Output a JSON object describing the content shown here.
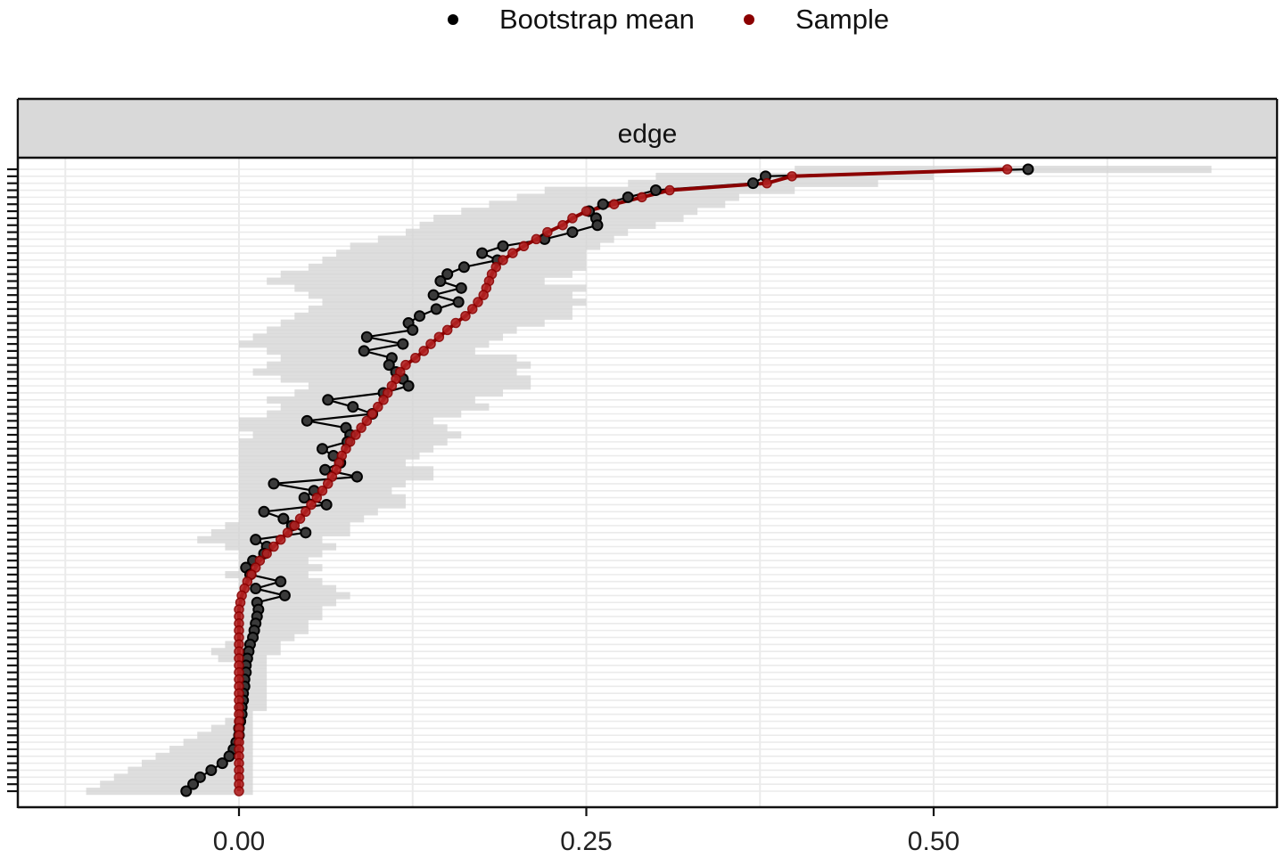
{
  "chart_data": {
    "type": "line",
    "title": "",
    "facet_label": "edge",
    "xlabel": "",
    "ylabel": "",
    "x_ticks": [
      0.0,
      0.25,
      0.5
    ],
    "x_tick_labels": [
      "0.00",
      "0.25",
      "0.50"
    ],
    "xlim": [
      -0.16,
      0.74
    ],
    "y_ticks_count": 90,
    "y_tick_labels": "hidden (edge names not shown)",
    "grid": true,
    "legend": {
      "position": "top",
      "entries": [
        {
          "label": "Bootstrap mean",
          "color": "#000000"
        },
        {
          "label": "Sample",
          "color": "#8b0000"
        }
      ]
    },
    "ci_band_color": "#d3d3d3",
    "series": [
      {
        "name": "Sample",
        "color": "#8b0000",
        "values": [
          0.553,
          0.398,
          0.38,
          0.31,
          0.29,
          0.27,
          0.25,
          0.24,
          0.233,
          0.222,
          0.214,
          0.205,
          0.197,
          0.19,
          0.185,
          0.182,
          0.18,
          0.178,
          0.176,
          0.172,
          0.168,
          0.163,
          0.156,
          0.15,
          0.144,
          0.138,
          0.133,
          0.127,
          0.12,
          0.116,
          0.113,
          0.11,
          0.107,
          0.104,
          0.1,
          0.096,
          0.092,
          0.088,
          0.084,
          0.08,
          0.077,
          0.074,
          0.072,
          0.07,
          0.067,
          0.064,
          0.06,
          0.056,
          0.052,
          0.048,
          0.044,
          0.04,
          0.035,
          0.03,
          0.025,
          0.02,
          0.015,
          0.012,
          0.009,
          0.006,
          0.004,
          0.002,
          0.001,
          0,
          0,
          0,
          0,
          0,
          0,
          0,
          0,
          0,
          0,
          0,
          0,
          0,
          0,
          0,
          0,
          0,
          0,
          0,
          0,
          0,
          0,
          0,
          0,
          0,
          0,
          0
        ]
      },
      {
        "name": "Bootstrap mean",
        "color": "#000000",
        "values": [
          0.568,
          0.379,
          0.37,
          0.3,
          0.28,
          0.262,
          0.252,
          0.257,
          0.258,
          0.24,
          0.22,
          0.19,
          0.175,
          0.186,
          0.162,
          0.15,
          0.145,
          0.16,
          0.14,
          0.158,
          0.142,
          0.13,
          0.122,
          0.125,
          0.092,
          0.118,
          0.09,
          0.11,
          0.108,
          0.113,
          0.118,
          0.122,
          0.104,
          0.064,
          0.082,
          0.096,
          0.049,
          0.077,
          0.08,
          0.078,
          0.06,
          0.068,
          0.073,
          0.062,
          0.085,
          0.025,
          0.054,
          0.047,
          0.063,
          0.018,
          0.032,
          0.038,
          0.048,
          0.012,
          0.02,
          0.018,
          0.01,
          0.005,
          0.008,
          0.03,
          0.012,
          0.033,
          0.013,
          0.014,
          0.013,
          0.012,
          0.011,
          0.01,
          0.008,
          0.007,
          0.006,
          0.005,
          0.005,
          0.004,
          0.004,
          0.003,
          0.003,
          0.002,
          0.002,
          0.001,
          0,
          0,
          -0.002,
          -0.004,
          -0.007,
          -0.012,
          -0.02,
          -0.028,
          -0.033,
          -0.038
        ]
      }
    ],
    "ci_lower": [
      0.4,
      0.3,
      0.28,
      0.22,
      0.2,
      0.18,
      0.16,
      0.14,
      0.13,
      0.12,
      0.1,
      0.08,
      0.07,
      0.06,
      0.05,
      0.03,
      0.02,
      0.04,
      0.05,
      0.06,
      0.05,
      0.04,
      0.03,
      0.02,
      0.01,
      0.0,
      0.02,
      0.03,
      0.02,
      0.01,
      0.03,
      0.05,
      0.04,
      0.02,
      0.03,
      0.02,
      0.0,
      0.0,
      0.01,
      0.0,
      0.0,
      0.0,
      0.0,
      0.0,
      0.0,
      0.0,
      0.0,
      0.0,
      0.0,
      0.0,
      0.0,
      -0.01,
      -0.02,
      -0.03,
      -0.01,
      0.0,
      0.0,
      0.0,
      -0.01,
      0.0,
      0.0,
      0.0,
      0.0,
      0.0,
      0.0,
      0.0,
      0.0,
      0.0,
      -0.01,
      -0.02,
      -0.015,
      0.0,
      0.0,
      0.0,
      0.0,
      0.0,
      0.0,
      0.0,
      0.0,
      -0.01,
      -0.02,
      -0.03,
      -0.04,
      -0.05,
      -0.06,
      -0.07,
      -0.08,
      -0.09,
      -0.1,
      -0.11
    ],
    "ci_upper": [
      0.7,
      0.5,
      0.46,
      0.4,
      0.36,
      0.35,
      0.33,
      0.32,
      0.3,
      0.28,
      0.27,
      0.26,
      0.25,
      0.25,
      0.25,
      0.24,
      0.22,
      0.25,
      0.24,
      0.25,
      0.24,
      0.24,
      0.22,
      0.2,
      0.19,
      0.18,
      0.17,
      0.2,
      0.21,
      0.2,
      0.21,
      0.21,
      0.19,
      0.17,
      0.18,
      0.16,
      0.14,
      0.15,
      0.16,
      0.15,
      0.14,
      0.13,
      0.12,
      0.14,
      0.14,
      0.12,
      0.11,
      0.12,
      0.12,
      0.1,
      0.09,
      0.08,
      0.08,
      0.06,
      0.07,
      0.06,
      0.05,
      0.06,
      0.05,
      0.06,
      0.07,
      0.08,
      0.07,
      0.06,
      0.06,
      0.05,
      0.05,
      0.04,
      0.03,
      0.03,
      0.02,
      0.02,
      0.02,
      0.02,
      0.02,
      0.02,
      0.02,
      0.02,
      0.01,
      0.01,
      0.01,
      0.01,
      0.01,
      0.01,
      0.01,
      0.01,
      0.01,
      0.01,
      0.01,
      0.01
    ]
  },
  "legend": {
    "bootstrap_label": "Bootstrap mean",
    "sample_label": "Sample"
  },
  "panel": {
    "strip_label": "edge"
  }
}
